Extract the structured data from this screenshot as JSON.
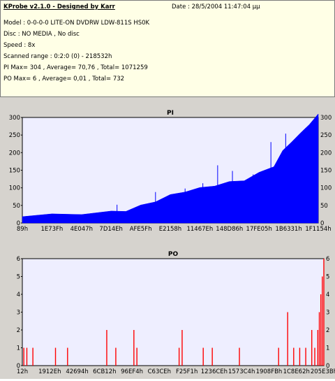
{
  "info": {
    "title": "KProbe v2.1.0 - Designed by Karr",
    "date": "Date : 28/5/2004 11:47:04 μμ",
    "lines": [
      "Model : 0-0-0-0 LITE-ON DVDRW LDW-811S   HS0K",
      "Disc : NO MEDIA , No disc",
      "Speed : 8x",
      "Scanned range : 0:2:0 (0) - 218532h",
      "PI Max= 304 , Average= 70,76 , Total= 1071259",
      "PO Max= 6 , Average= 0,01 , Total= 732"
    ]
  },
  "colors": {
    "background": "#d6d3ce",
    "plot_bg": "#eeeeff",
    "pi": "#0000ff",
    "po": "#ff0000"
  },
  "chart_data": [
    {
      "type": "area",
      "title": "PI",
      "ylim": [
        0,
        300
      ],
      "yticks": [
        "300",
        "250",
        "200",
        "150",
        "100",
        "50",
        "0"
      ],
      "x_tick_labels": [
        "89h",
        "1E73Fh",
        "4E047h",
        "7D14Eh",
        "AFE5Fh",
        "E2158h",
        "11467Eh",
        "148D86h",
        "17FE05h",
        "1B6331h",
        "1F1154h"
      ],
      "x": [
        0,
        0.1,
        0.2,
        0.3,
        0.35,
        0.4,
        0.45,
        0.5,
        0.55,
        0.6,
        0.65,
        0.7,
        0.75,
        0.8,
        0.85,
        0.88,
        0.91,
        0.94,
        0.97,
        1.0
      ],
      "values": [
        18,
        20,
        24,
        28,
        33,
        45,
        60,
        75,
        88,
        95,
        105,
        112,
        120,
        138,
        160,
        200,
        230,
        250,
        280,
        304
      ],
      "spikes": [
        {
          "x": 0.32,
          "value": 52
        },
        {
          "x": 0.45,
          "value": 88
        },
        {
          "x": 0.55,
          "value": 98
        },
        {
          "x": 0.61,
          "value": 113
        },
        {
          "x": 0.66,
          "value": 164
        },
        {
          "x": 0.71,
          "value": 148
        },
        {
          "x": 0.78,
          "value": 138
        },
        {
          "x": 0.84,
          "value": 230
        },
        {
          "x": 0.89,
          "value": 254
        }
      ]
    },
    {
      "type": "bar",
      "title": "PO",
      "ylim": [
        0,
        6
      ],
      "yticks": [
        "6",
        "5",
        "4",
        "3",
        "2",
        "1",
        "0"
      ],
      "x_tick_labels": [
        "12h",
        "1912Eh",
        "42694h",
        "6CB12h",
        "96EF4h",
        "C63CEh",
        "F25F1h",
        "1236CEh",
        "1573C4h",
        "1908FBh",
        "1C8E62h",
        "205E3Bh"
      ],
      "bars": [
        {
          "x": 0.005,
          "value": 1
        },
        {
          "x": 0.015,
          "value": 1
        },
        {
          "x": 0.035,
          "value": 1
        },
        {
          "x": 0.11,
          "value": 1
        },
        {
          "x": 0.15,
          "value": 1
        },
        {
          "x": 0.28,
          "value": 2
        },
        {
          "x": 0.31,
          "value": 1
        },
        {
          "x": 0.37,
          "value": 2
        },
        {
          "x": 0.38,
          "value": 1
        },
        {
          "x": 0.52,
          "value": 1
        },
        {
          "x": 0.53,
          "value": 2
        },
        {
          "x": 0.6,
          "value": 1
        },
        {
          "x": 0.63,
          "value": 1
        },
        {
          "x": 0.72,
          "value": 1
        },
        {
          "x": 0.85,
          "value": 1
        },
        {
          "x": 0.88,
          "value": 3
        },
        {
          "x": 0.9,
          "value": 1
        },
        {
          "x": 0.92,
          "value": 1
        },
        {
          "x": 0.94,
          "value": 1
        },
        {
          "x": 0.96,
          "value": 2
        },
        {
          "x": 0.97,
          "value": 1
        },
        {
          "x": 0.98,
          "value": 2
        },
        {
          "x": 0.985,
          "value": 3
        },
        {
          "x": 0.99,
          "value": 4
        },
        {
          "x": 0.995,
          "value": 5
        },
        {
          "x": 1.0,
          "value": 6
        }
      ]
    }
  ]
}
